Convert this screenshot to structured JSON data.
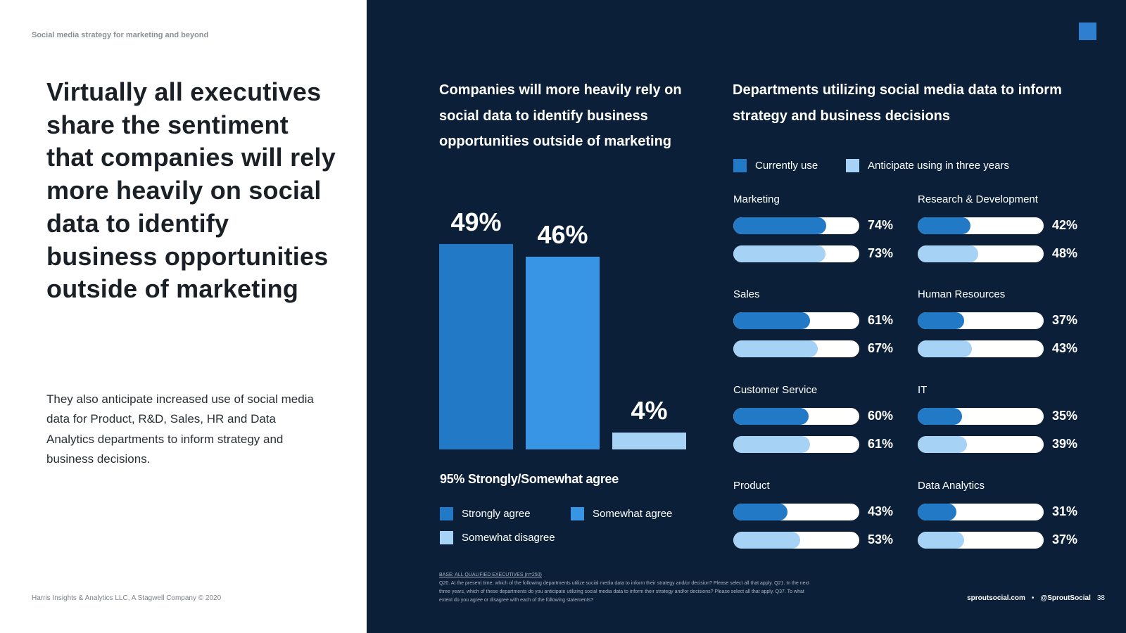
{
  "header": {
    "text": "Social media strategy for marketing and beyond"
  },
  "headline": "Virtually all executives share the sentiment that companies will rely more heavily on social data to identify business opportunities outside of marketing",
  "body": "They also anticipate increased use of social media data for Product, R&D, Sales, HR and Data Analytics departments to inform strategy and business decisions.",
  "footer_left": "Harris Insights & Analytics LLC, A Stagwell Company © 2020",
  "footer_right": {
    "site": "sproutsocial.com",
    "sep": "•",
    "handle": "@SproutSocial",
    "page": "38"
  },
  "base_note": {
    "label": "BASE: ALL QUALIFIED EXECUTIVES (n=250)",
    "text": "Q20. At the present time, which of the following departments utilize social media data to inform their strategy and/or decision? Please select all that apply. Q21. In the next three years, which of these departments do you anticipate utilizing social media data to inform their strategy and/or decisions? Please select all that apply. Q37. To what extent do you agree or disagree with each of the following statements?"
  },
  "colors": {
    "dark_bg": "#0b2038",
    "strongly": "#2279c6",
    "somewhat": "#3894e4",
    "disagree": "#a6d2f6",
    "current": "#2279c6",
    "anticipate": "#a6d2f6"
  },
  "chart_data": [
    {
      "type": "bar",
      "title": "Companies will more heavily rely on social data to identify business opportunities outside of marketing",
      "categories": [
        "Strongly agree",
        "Somewhat agree",
        "Somewhat disagree"
      ],
      "values": [
        49,
        46,
        4
      ],
      "value_labels": [
        "49%",
        "46%",
        "4%"
      ],
      "ylim": [
        0,
        50
      ],
      "summary": "95% Strongly/Somewhat agree",
      "legend": [
        "Strongly agree",
        "Somewhat agree",
        "Somewhat disagree"
      ]
    },
    {
      "type": "bar",
      "orientation": "horizontal",
      "title": "Departments utilizing social media data to inform strategy and business decisions",
      "legend": [
        "Currently use",
        "Anticipate using in three years"
      ],
      "xlim": [
        0,
        100
      ],
      "departments": [
        {
          "name": "Marketing",
          "current": 74,
          "anticipate": 73,
          "current_label": "74%",
          "anticipate_label": "73%"
        },
        {
          "name": "Research & Development",
          "current": 42,
          "anticipate": 48,
          "current_label": "42%",
          "anticipate_label": "48%"
        },
        {
          "name": "Sales",
          "current": 61,
          "anticipate": 67,
          "current_label": "61%",
          "anticipate_label": "67%"
        },
        {
          "name": "Human Resources",
          "current": 37,
          "anticipate": 43,
          "current_label": "37%",
          "anticipate_label": "43%"
        },
        {
          "name": "Customer Service",
          "current": 60,
          "anticipate": 61,
          "current_label": "60%",
          "anticipate_label": "61%"
        },
        {
          "name": "IT",
          "current": 35,
          "anticipate": 39,
          "current_label": "35%",
          "anticipate_label": "39%"
        },
        {
          "name": "Product",
          "current": 43,
          "anticipate": 53,
          "current_label": "43%",
          "anticipate_label": "53%"
        },
        {
          "name": "Data Analytics",
          "current": 31,
          "anticipate": 37,
          "current_label": "31%",
          "anticipate_label": "37%"
        }
      ]
    }
  ]
}
